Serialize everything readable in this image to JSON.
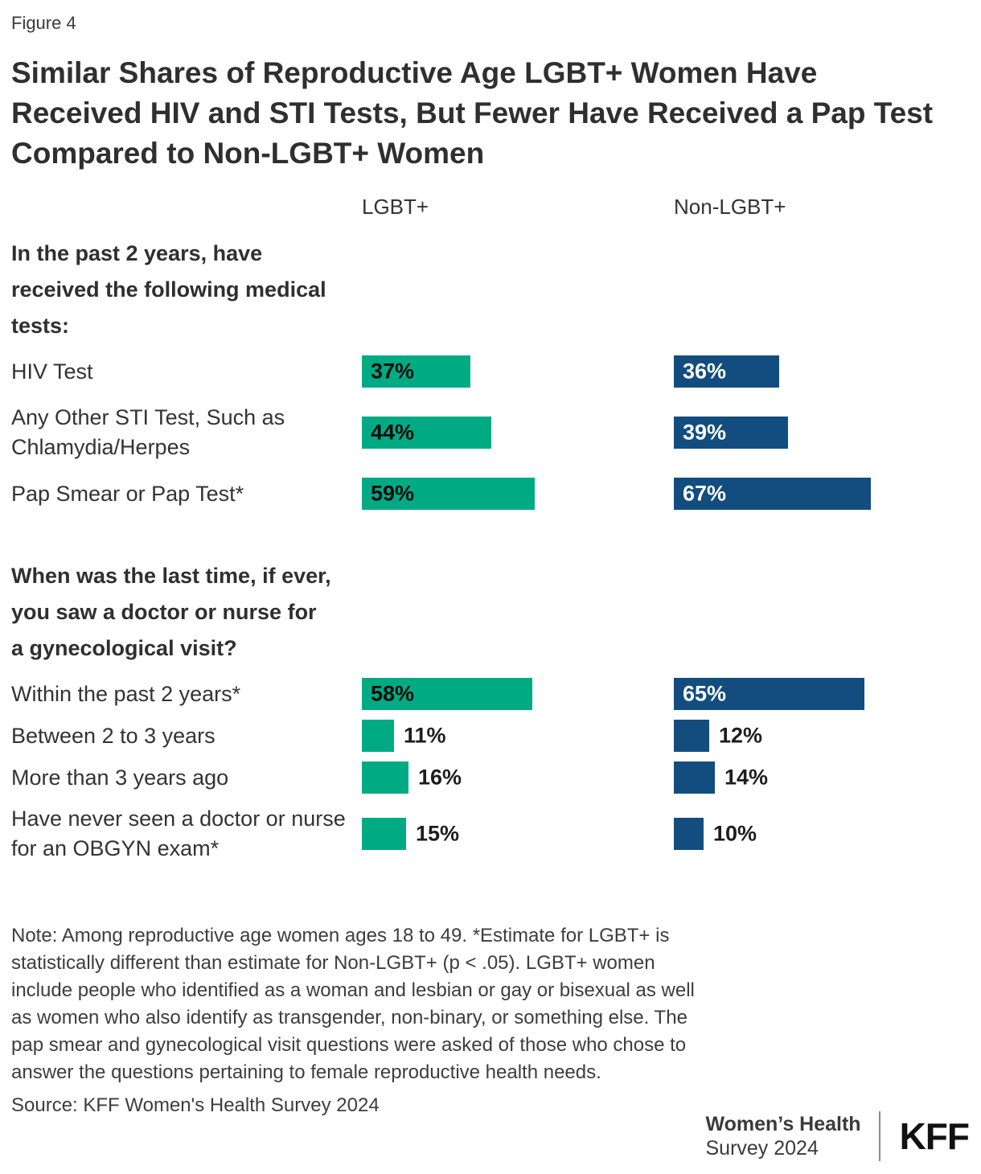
{
  "figure_label": "Figure 4",
  "title": "Similar Shares of Reproductive Age LGBT+ Women Have Received HIV and STI Tests, But Fewer Have Received a Pap Test Compared to Non-LGBT+ Women",
  "chart_data": {
    "type": "bar",
    "orientation": "horizontal",
    "unit": "%",
    "xlim": [
      0,
      100
    ],
    "grid": false,
    "legend_position": "top-as-column-headers",
    "series_names": [
      "LGBT+",
      "Non-LGBT+"
    ],
    "series_colors": [
      "#00AB84",
      "#134D7F"
    ],
    "sections": [
      {
        "heading": "In the past 2 years, have received the following medical tests:",
        "rows": [
          {
            "label": "HIV Test",
            "values": [
              37,
              36
            ],
            "value_labels": [
              "37%",
              "36%"
            ]
          },
          {
            "label": "Any Other STI Test, Such as Chlamydia/Herpes",
            "values": [
              44,
              39
            ],
            "value_labels": [
              "44%",
              "39%"
            ]
          },
          {
            "label": "Pap Smear or Pap Test*",
            "values": [
              59,
              67
            ],
            "value_labels": [
              "59%",
              "67%"
            ]
          }
        ]
      },
      {
        "heading": "When was the last time, if ever, you saw a doctor or nurse for a gynecological visit?",
        "rows": [
          {
            "label": "Within the past 2 years*",
            "values": [
              58,
              65
            ],
            "value_labels": [
              "58%",
              "65%"
            ]
          },
          {
            "label": "Between 2 to 3 years",
            "values": [
              11,
              12
            ],
            "value_labels": [
              "11%",
              "12%"
            ]
          },
          {
            "label": "More than 3 years ago",
            "values": [
              16,
              14
            ],
            "value_labels": [
              "16%",
              "14%"
            ]
          },
          {
            "label": "Have never seen a doctor or nurse for an OBGYN exam*",
            "values": [
              15,
              10
            ],
            "value_labels": [
              "15%",
              "10%"
            ]
          }
        ]
      }
    ]
  },
  "note": "Note: Among reproductive age women ages 18 to 49. *Estimate for LGBT+ is statistically different than estimate for Non-LGBT+ (p < .05). LGBT+ women include people who identified as a woman and lesbian or gay or bisexual as well as women who also identify as transgender, non-binary, or something else. The pap smear and gynecological visit questions were asked of those who chose to answer the questions pertaining to female reproductive health needs.",
  "source": "Source: KFF Women's Health Survey 2024",
  "footer": {
    "program_line1": "Women’s Health",
    "program_line2": "Survey 2024",
    "logo_text": "KFF"
  }
}
